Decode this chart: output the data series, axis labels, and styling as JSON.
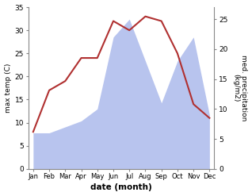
{
  "months": [
    "Jan",
    "Feb",
    "Mar",
    "Apr",
    "May",
    "Jun",
    "Jul",
    "Aug",
    "Sep",
    "Oct",
    "Nov",
    "Dec"
  ],
  "temperature": [
    8,
    17,
    19,
    24,
    24,
    32,
    30,
    33,
    32,
    25,
    14,
    11
  ],
  "precipitation": [
    6,
    6,
    7,
    8,
    10,
    22,
    25,
    18,
    11,
    18,
    22,
    9
  ],
  "temp_color": "#b03030",
  "precip_color": "#b8c4ee",
  "ylabel_left": "max temp (C)",
  "ylabel_right": "med. precipitation\n(kg/m2)",
  "xlabel": "date (month)",
  "ylim_left": [
    0,
    35
  ],
  "ylim_right": [
    0,
    27
  ],
  "yticks_left": [
    0,
    5,
    10,
    15,
    20,
    25,
    30,
    35
  ],
  "yticks_right": [
    0,
    5,
    10,
    15,
    20,
    25
  ],
  "bg_color": "#ffffff"
}
